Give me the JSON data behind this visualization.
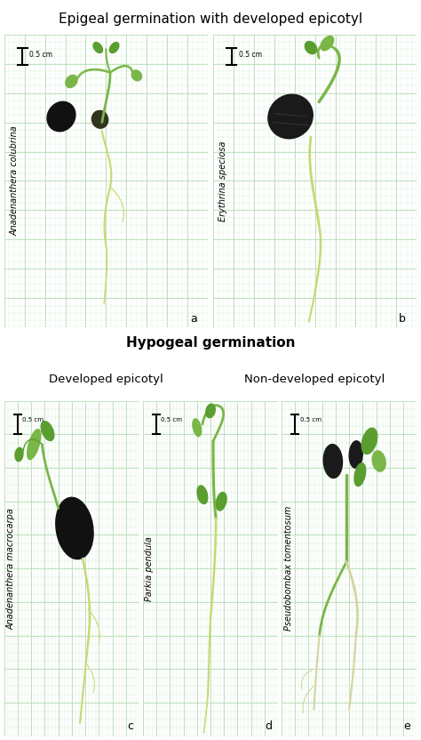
{
  "title_top": "Epigeal germination with developed epicotyl",
  "title_middle": "Hypogeal germination",
  "subtitle_left": "Developed epicotyl",
  "subtitle_right": "Non-developed epicotyl",
  "panel_labels": [
    "a",
    "b",
    "c",
    "d",
    "e"
  ],
  "species_labels": [
    "Anadenanthera colubrina",
    "Erythrina speciosa",
    "Anadenanthera macrocarpa",
    "Parkia pendula",
    "Pseudobombax tomentosum"
  ],
  "bg_color_header_top": "#eaecf5",
  "bg_color_header_mid": "#eaecf5",
  "grid_color_main": "#b8ddb8",
  "grid_color_minor": "#d4ecd4",
  "panel_bg": "#ddeedd",
  "seed_color": "#1a1a1a",
  "seed_color2": "#2a2a2a",
  "stem_color": "#7ab648",
  "root_color": "#c8d870",
  "leaf_color": "#5a9e30",
  "title_fontsize": 11,
  "subtitle_fontsize": 9.5,
  "label_fontsize": 7,
  "species_fontsize": 7,
  "panel_label_fontsize": 9
}
